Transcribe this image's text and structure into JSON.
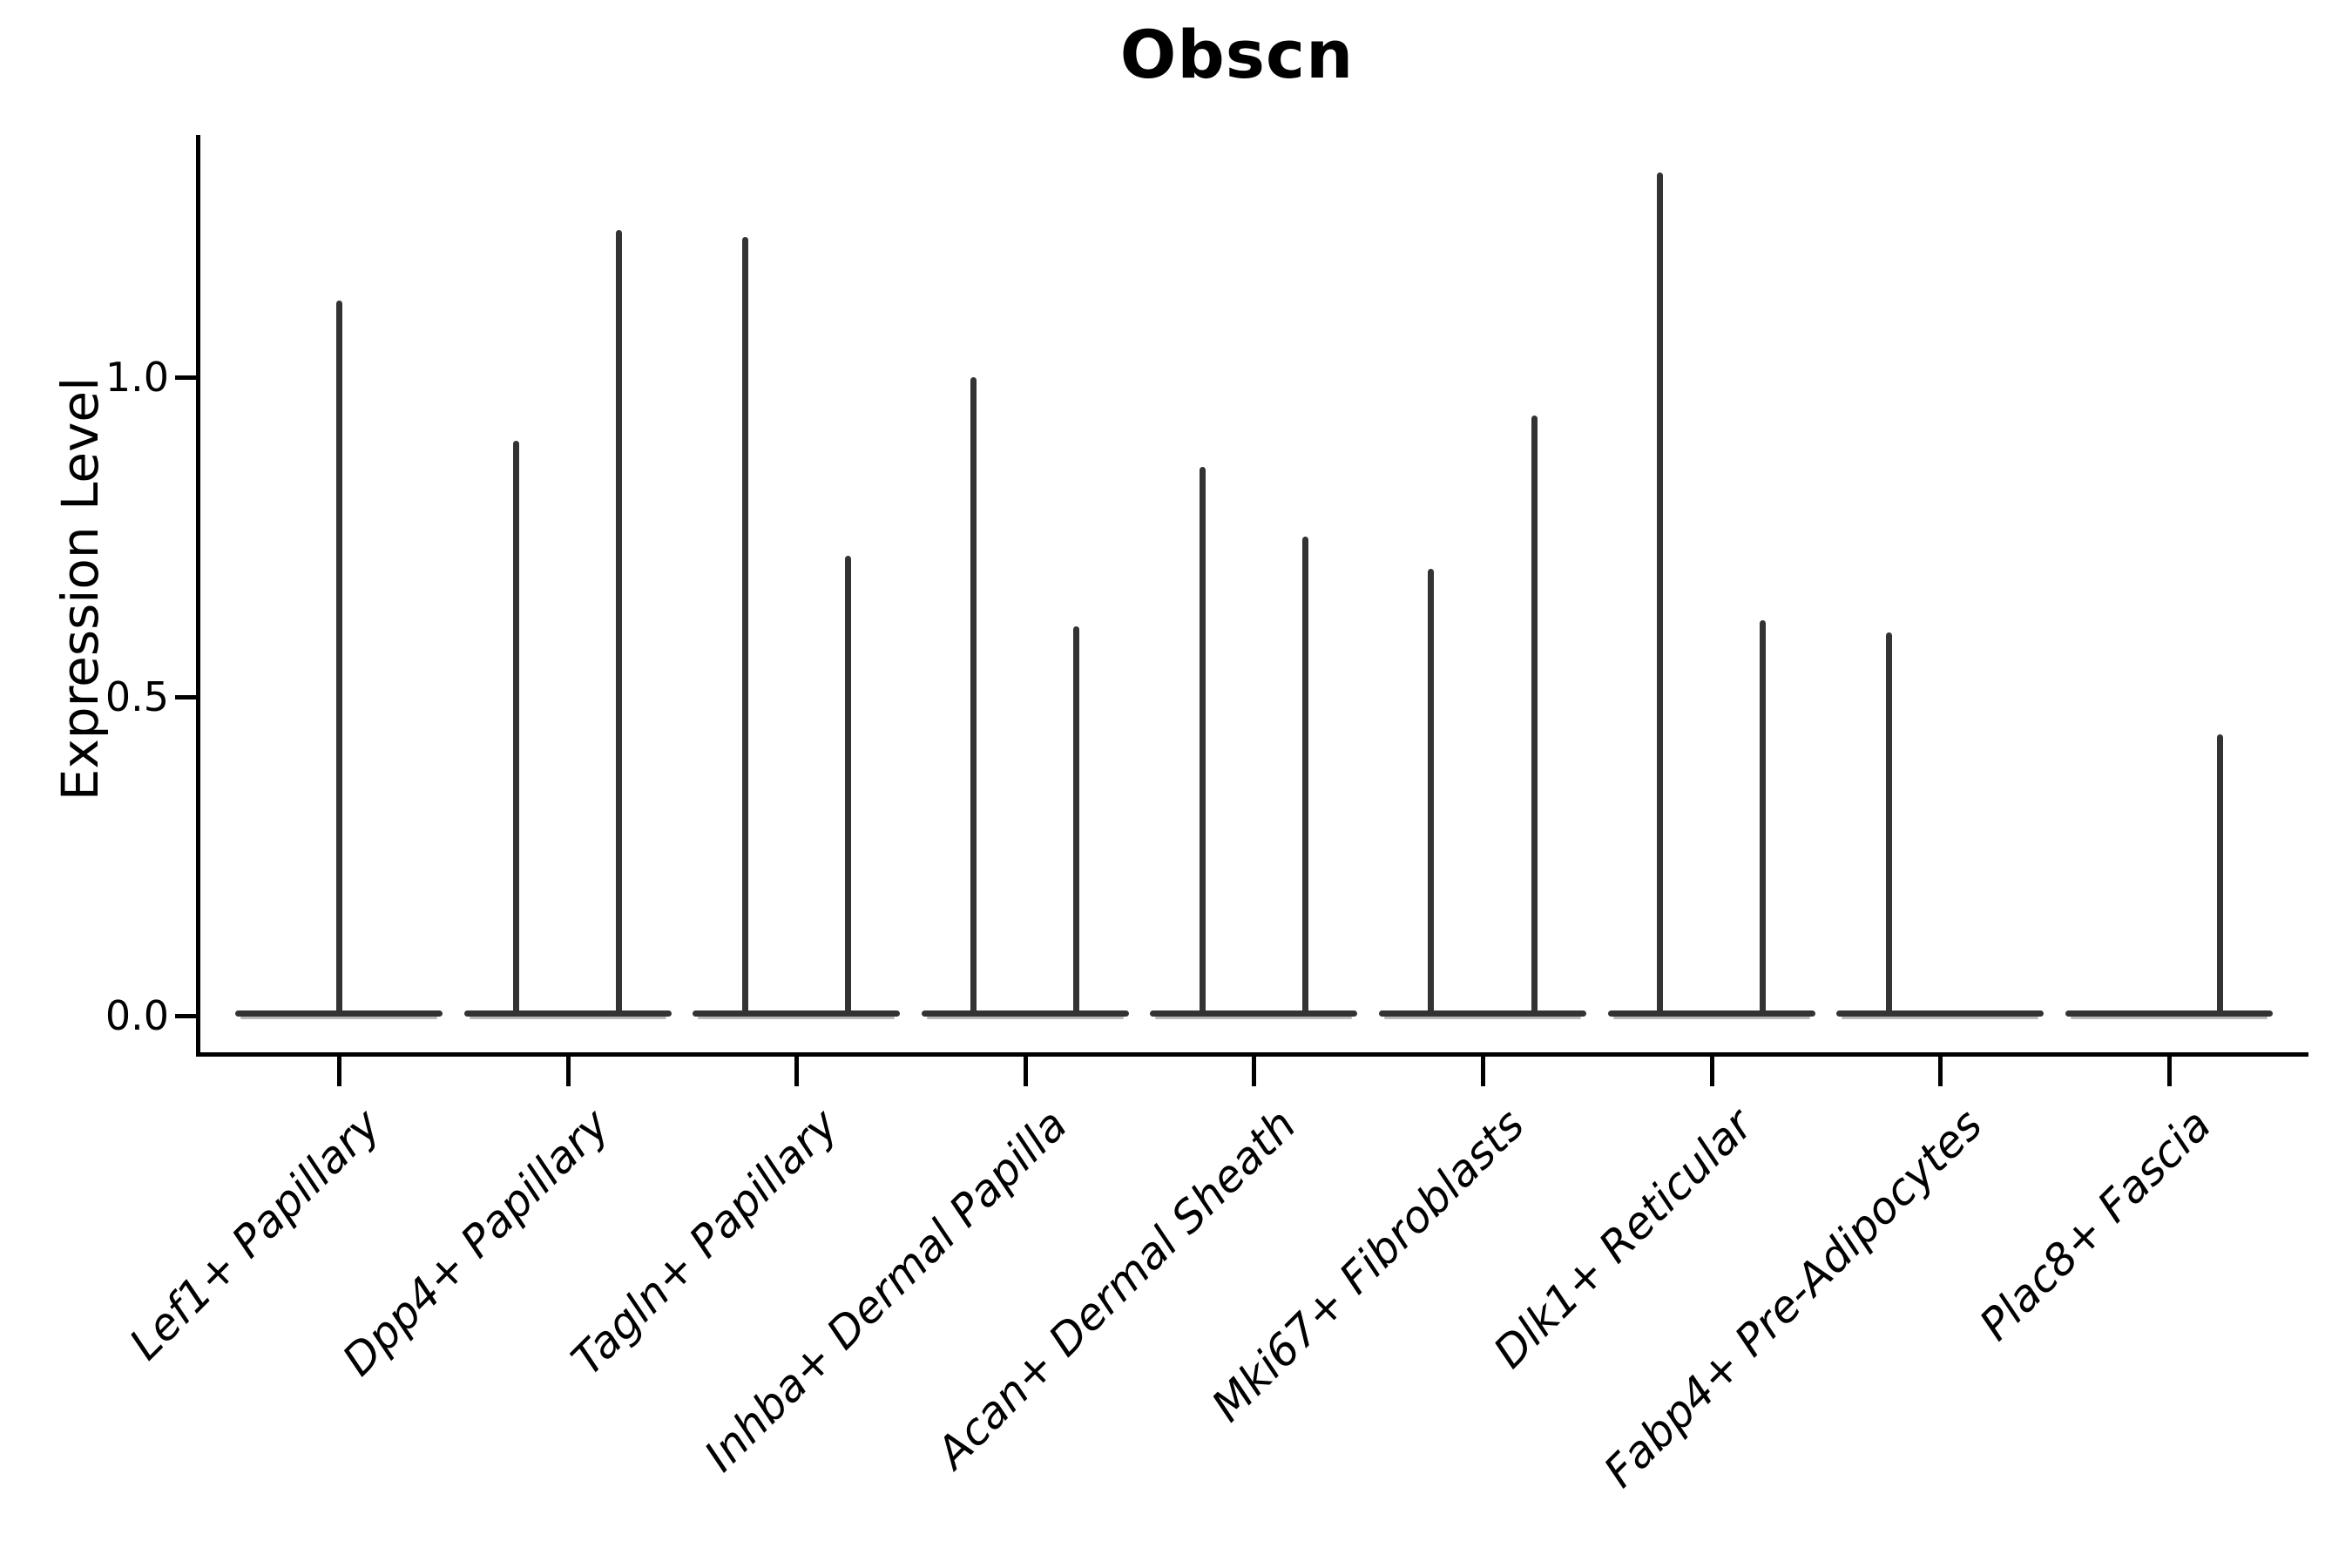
{
  "chart_data": {
    "type": "violin",
    "title": "Obscn",
    "ylabel": "Expression Level",
    "xlabel": "",
    "grid": false,
    "legend": null,
    "background_color": "#ffffff",
    "line_color": "#333333",
    "spine_color": "#000000",
    "fill_edge_color": "#b9b9b9",
    "ylim": [
      -0.06,
      1.38
    ],
    "yticks": {
      "values": [
        0.0,
        0.5,
        1.0
      ],
      "labels": [
        "0.0",
        "0.5",
        "1.0"
      ]
    },
    "categories": [
      "Lef1+ Papillary",
      "Dpp4+ Papillary",
      "Tagln+ Papillary",
      "Inhba+ Dermal Papilla",
      "Acan+ Dermal Sheath",
      "Mki67+ Fibroblasts",
      "Dlk1+ Reticular",
      "Fabp4+ Pre-Adipocytes",
      "Plac8+ Fascia"
    ],
    "violins": [
      {
        "category": "Lef1+ Papillary",
        "spikes": [
          {
            "position": "center",
            "max_expression": 1.12
          }
        ]
      },
      {
        "category": "Dpp4+ Papillary",
        "spikes": [
          {
            "position": "left",
            "max_expression": 0.9
          },
          {
            "position": "right",
            "max_expression": 1.23
          }
        ]
      },
      {
        "category": "Tagln+ Papillary",
        "spikes": [
          {
            "position": "left",
            "max_expression": 1.22
          },
          {
            "position": "right",
            "max_expression": 0.72
          }
        ]
      },
      {
        "category": "Inhba+ Dermal Papilla",
        "spikes": [
          {
            "position": "left",
            "max_expression": 1.0
          },
          {
            "position": "right",
            "max_expression": 0.61
          }
        ]
      },
      {
        "category": "Acan+ Dermal Sheath",
        "spikes": [
          {
            "position": "left",
            "max_expression": 0.86
          },
          {
            "position": "right",
            "max_expression": 0.75
          }
        ]
      },
      {
        "category": "Mki67+ Fibroblasts",
        "spikes": [
          {
            "position": "left",
            "max_expression": 0.7
          },
          {
            "position": "right",
            "max_expression": 0.94
          }
        ]
      },
      {
        "category": "Dlk1+ Reticular",
        "spikes": [
          {
            "position": "left",
            "max_expression": 1.32
          },
          {
            "position": "right",
            "max_expression": 0.62
          }
        ]
      },
      {
        "category": "Fabp4+ Pre-Adipocytes",
        "spikes": [
          {
            "position": "left",
            "max_expression": 0.6
          }
        ]
      },
      {
        "category": "Plac8+ Fascia",
        "spikes": [
          {
            "position": "right",
            "max_expression": 0.44
          }
        ]
      }
    ],
    "baseline_value": 0.0
  }
}
